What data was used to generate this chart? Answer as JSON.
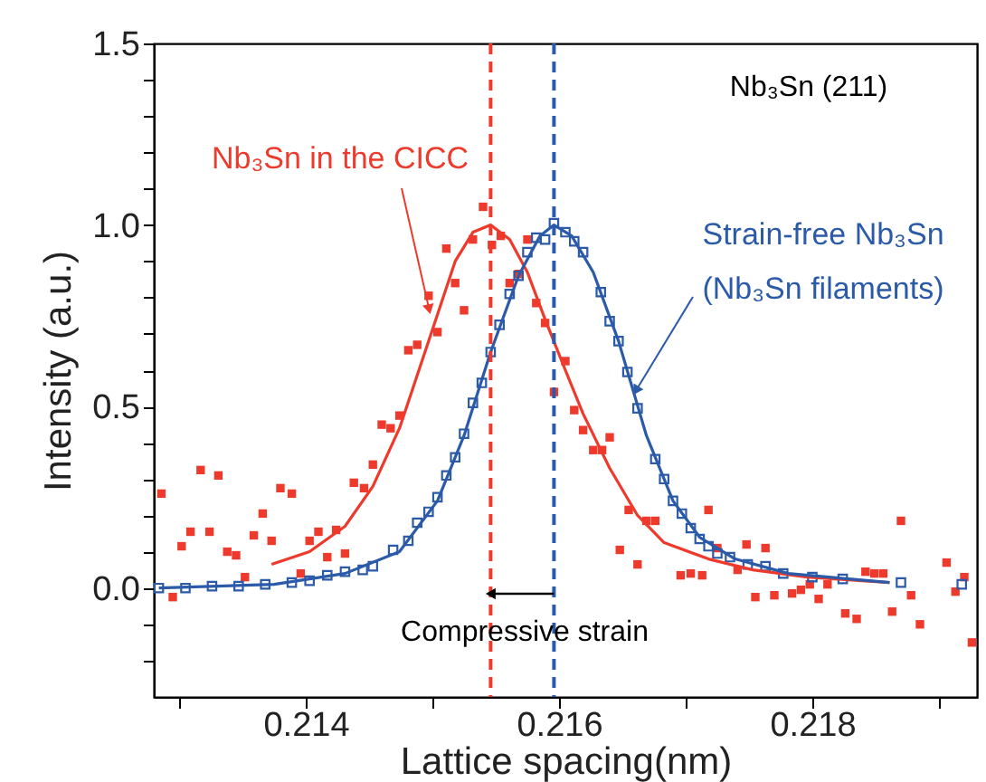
{
  "chart_data": {
    "type": "scatter",
    "xlabel": "Lattice spacing(nm)",
    "ylabel": "Intensity (a.u.)",
    "xlim": [
      0.2128,
      0.2193
    ],
    "ylim": [
      -0.3,
      1.5
    ],
    "xticks": [
      0.214,
      0.216,
      0.218,
      {
        "value": 0.213,
        "label": null
      },
      {
        "value": 0.215,
        "label": null
      },
      {
        "value": 0.217,
        "label": null
      },
      {
        "value": 0.219,
        "label": null
      }
    ],
    "yticks": [
      {
        "value": 0.0,
        "label": "0.0"
      },
      0.5,
      {
        "value": 1.0,
        "label": "1.0"
      },
      1.5,
      {
        "value": -0.2,
        "label": null
      },
      {
        "value": -0.1,
        "label": null
      },
      {
        "value": 0.1,
        "label": null
      },
      {
        "value": 0.2,
        "label": null
      },
      {
        "value": 0.3,
        "label": null
      },
      {
        "value": 0.4,
        "label": null
      },
      {
        "value": 0.6,
        "label": null
      },
      {
        "value": 0.7,
        "label": null
      },
      {
        "value": 0.8,
        "label": null
      },
      {
        "value": 0.9,
        "label": null
      },
      {
        "value": 1.1,
        "label": null
      },
      {
        "value": 1.2,
        "label": null
      },
      {
        "value": 1.3,
        "label": null
      },
      {
        "value": 1.4,
        "label": null
      }
    ],
    "grid": false,
    "legend": false,
    "series": [
      {
        "name": "Nb₃Sn in the CICC",
        "marker": "square",
        "color": "#ee3a2c",
        "x": [
          0.21286,
          0.21295,
          0.21302,
          0.21309,
          0.21317,
          0.21324,
          0.21331,
          0.21338,
          0.21345,
          0.21352,
          0.21359,
          0.21366,
          0.21373,
          0.2138,
          0.21389,
          0.21396,
          0.21403,
          0.2141,
          0.21417,
          0.21424,
          0.21431,
          0.21438,
          0.21446,
          0.21453,
          0.2146,
          0.21467,
          0.21474,
          0.21481,
          0.21488,
          0.21497,
          0.21504,
          0.21511,
          0.21518,
          0.21525,
          0.21532,
          0.2154,
          0.21547,
          0.21554,
          0.21561,
          0.21568,
          0.21575,
          0.21582,
          0.21589,
          0.21596,
          0.21605,
          0.21612,
          0.21619,
          0.21627,
          0.21634,
          0.2164,
          0.21648,
          0.21655,
          0.21662,
          0.21669,
          0.21676,
          0.21696,
          0.21704,
          0.21713,
          0.21718,
          0.21725,
          0.21741,
          0.21748,
          0.21755,
          0.21763,
          0.2177,
          0.21784,
          0.21791,
          0.21798,
          0.21805,
          0.21812,
          0.21826,
          0.21835,
          0.21842,
          0.21849,
          0.21856,
          0.21863,
          0.2187,
          0.21878,
          0.21885,
          0.21906,
          0.21913,
          0.2192,
          0.21926
        ],
        "values": [
          0.26,
          -0.025,
          0.115,
          0.155,
          0.325,
          0.155,
          0.31,
          0.1,
          0.09,
          0.03,
          0.145,
          0.205,
          0.13,
          0.275,
          0.26,
          0.04,
          0.13,
          0.155,
          0.085,
          0.16,
          0.095,
          0.29,
          0.275,
          0.34,
          0.45,
          0.44,
          0.475,
          0.655,
          0.67,
          0.805,
          0.705,
          0.935,
          0.84,
          0.765,
          0.96,
          1.05,
          0.945,
          0.97,
          0.84,
          0.865,
          0.96,
          0.785,
          0.73,
          0.54,
          0.625,
          0.49,
          0.435,
          0.38,
          0.38,
          0.415,
          0.105,
          0.215,
          0.065,
          0.185,
          0.185,
          0.035,
          0.04,
          0.035,
          0.215,
          0.11,
          0.05,
          0.12,
          -0.025,
          0.11,
          -0.02,
          -0.015,
          -0.005,
          0.01,
          -0.03,
          0.01,
          -0.07,
          -0.085,
          0.045,
          0.04,
          0.04,
          -0.065,
          0.185,
          -0.02,
          -0.1,
          0.07,
          -0.01,
          0.03,
          -0.15
        ]
      },
      {
        "name": "Strain-free Nb₃Sn\n(Nb₃Sn filaments)",
        "marker": "square",
        "color": "#2b5aa8",
        "x": [
          0.21284,
          0.21305,
          0.21326,
          0.21347,
          0.21368,
          0.21389,
          0.21403,
          0.21417,
          0.21431,
          0.21445,
          0.21453,
          0.21469,
          0.21481,
          0.21488,
          0.21497,
          0.21504,
          0.21511,
          0.21518,
          0.21525,
          0.21532,
          0.21539,
          0.21546,
          0.21553,
          0.21561,
          0.21568,
          0.21575,
          0.21582,
          0.21589,
          0.21596,
          0.21605,
          0.21612,
          0.21619,
          0.21633,
          0.2164,
          0.21647,
          0.21654,
          0.21662,
          0.21676,
          0.21683,
          0.2169,
          0.21697,
          0.21704,
          0.21711,
          0.21718,
          0.21725,
          0.21735,
          0.21749,
          0.21763,
          0.21777,
          0.218,
          0.21824,
          0.2187,
          0.21918
        ],
        "values": [
          0.0,
          0.0,
          0.005,
          0.005,
          0.01,
          0.015,
          0.02,
          0.035,
          0.045,
          0.05,
          0.06,
          0.105,
          0.13,
          0.18,
          0.21,
          0.25,
          0.31,
          0.36,
          0.425,
          0.51,
          0.565,
          0.65,
          0.725,
          0.81,
          0.86,
          0.925,
          0.965,
          0.96,
          1.005,
          0.98,
          0.955,
          0.925,
          0.815,
          0.735,
          0.68,
          0.595,
          0.495,
          0.355,
          0.3,
          0.24,
          0.205,
          0.165,
          0.135,
          0.115,
          0.095,
          0.085,
          0.065,
          0.06,
          0.04,
          0.03,
          0.025,
          0.015,
          0.01
        ]
      },
      {
        "type": "line",
        "marker": "none",
        "color": "#ee3a2c",
        "x": [
          0.21373,
          0.21403,
          0.21431,
          0.21453,
          0.21474,
          0.21497,
          0.21518,
          0.21532,
          0.21546,
          0.21561,
          0.21575,
          0.21589,
          0.21605,
          0.21619,
          0.2164,
          0.21662,
          0.21683,
          0.21718,
          0.21753,
          0.21796,
          0.21861
        ],
        "values": [
          0.065,
          0.1,
          0.17,
          0.28,
          0.44,
          0.68,
          0.9,
          0.98,
          1.0,
          0.96,
          0.87,
          0.74,
          0.6,
          0.48,
          0.33,
          0.2,
          0.125,
          0.08,
          0.05,
          0.03,
          0.015
        ]
      },
      {
        "type": "line",
        "marker": "none",
        "color": "#2b5aa8",
        "x": [
          0.21284,
          0.21375,
          0.21431,
          0.21474,
          0.21504,
          0.21525,
          0.21546,
          0.21568,
          0.21585,
          0.21596,
          0.2161,
          0.21627,
          0.21647,
          0.21669,
          0.2169,
          0.21711,
          0.21739,
          0.21781,
          0.21861
        ],
        "values": [
          0.0,
          0.01,
          0.04,
          0.1,
          0.24,
          0.42,
          0.65,
          0.86,
          0.97,
          1.0,
          0.97,
          0.87,
          0.68,
          0.42,
          0.24,
          0.14,
          0.08,
          0.04,
          0.015
        ]
      }
    ],
    "ref_lines": [
      {
        "axis": "x",
        "value": 0.21546,
        "color": "#ee3a2c",
        "line_style": "dashed"
      },
      {
        "axis": "x",
        "value": 0.21596,
        "color": "#2b5aa8",
        "line_style": "dashed"
      }
    ],
    "annotations": [
      "Nb₃Sn (211)",
      "Compressive strain"
    ]
  }
}
